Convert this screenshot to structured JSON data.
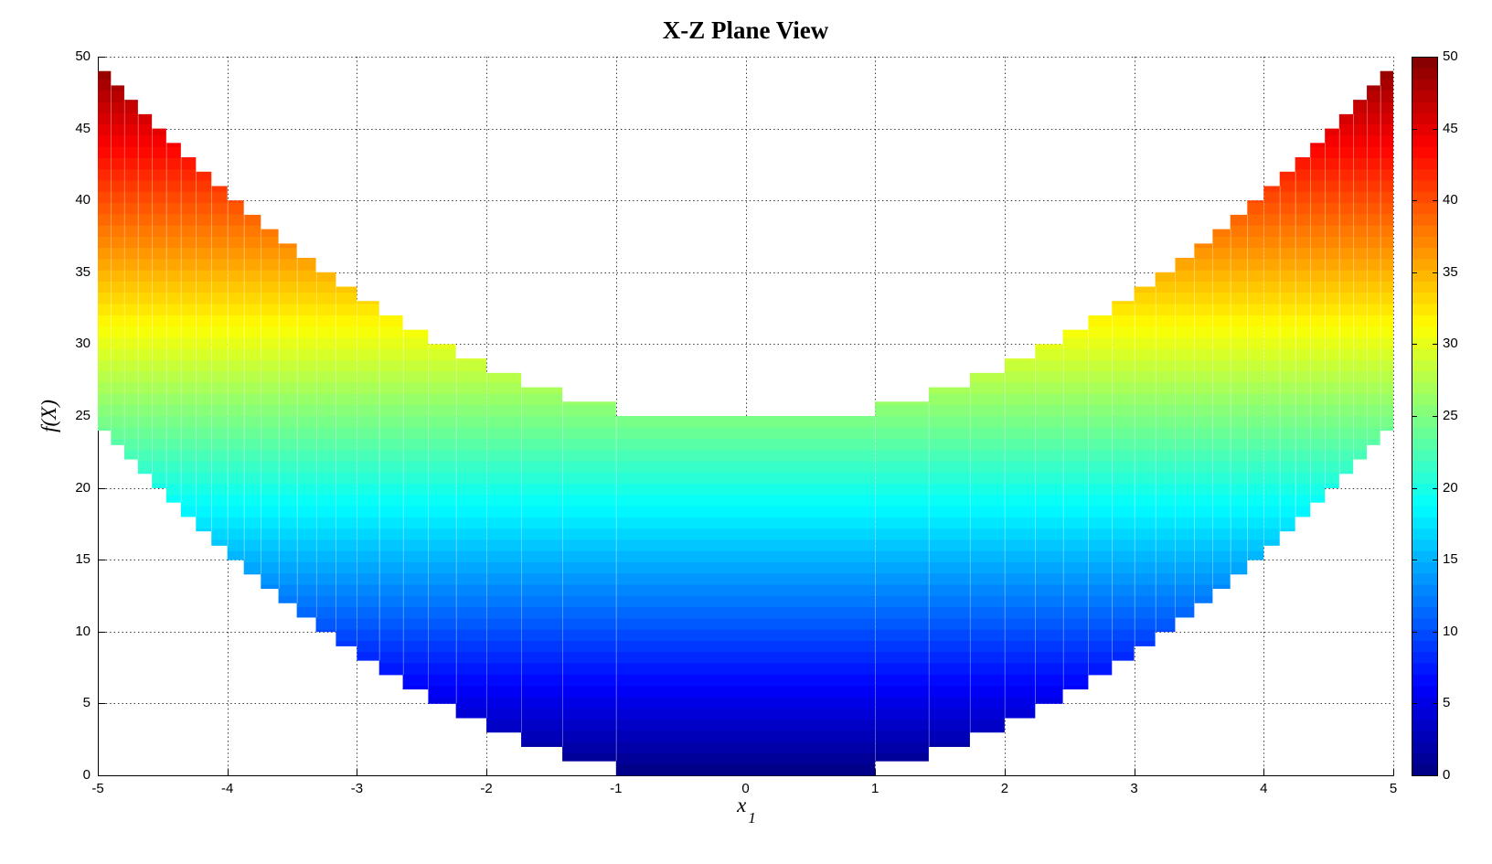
{
  "chart_data": {
    "type": "area",
    "title": "X-Z Plane View",
    "xlabel": "x",
    "xlabel_subscript": "1",
    "ylabel": "f(X)",
    "xlim": [
      -5,
      5
    ],
    "ylim": [
      0,
      50
    ],
    "xticks": [
      -5,
      -4,
      -3,
      -2,
      -1,
      0,
      1,
      2,
      3,
      4,
      5
    ],
    "xtick_labels": [
      "-5",
      "-4",
      "-3",
      "-2",
      "-1",
      "0",
      "1",
      "2",
      "3",
      "4",
      "5"
    ],
    "yticks": [
      0,
      5,
      10,
      15,
      20,
      25,
      30,
      35,
      40,
      45,
      50
    ],
    "ytick_labels": [
      "0",
      "5",
      "10",
      "15",
      "20",
      "25",
      "30",
      "35",
      "40",
      "45",
      "50"
    ],
    "grid": true,
    "grid_style": "dotted",
    "grid_color": "#333333",
    "axis_color": "#000000",
    "background": "#FFFFFF",
    "colormap": "jet",
    "color_levels": 64,
    "colormap_stops": [
      {
        "v": 0.0,
        "color": "#000080"
      },
      {
        "v": 0.125,
        "color": "#0000FF"
      },
      {
        "v": 0.375,
        "color": "#00FFFF"
      },
      {
        "v": 0.625,
        "color": "#FFFF00"
      },
      {
        "v": 0.875,
        "color": "#FF0000"
      },
      {
        "v": 1.0,
        "color": "#800000"
      }
    ],
    "colorbar": {
      "range": [
        0,
        50
      ],
      "ticks": [
        0,
        5,
        10,
        15,
        20,
        25,
        30,
        35,
        40,
        45,
        50
      ],
      "tick_labels": [
        "0",
        "5",
        "10",
        "15",
        "20",
        "25",
        "30",
        "35",
        "40",
        "45",
        "50"
      ]
    },
    "surface": {
      "function": "f(X) = x1^2 + x2^2",
      "x1_range": [
        -5,
        5
      ],
      "x2_range": [
        -5,
        5
      ],
      "view": "X-Z plane projection (view along x2)",
      "lower_envelope": "z = floor(x1^2)",
      "upper_envelope": "z = floor(x1^2) + 25",
      "band_thickness": 25,
      "z_step": 1,
      "symmetric_about_x0": true,
      "mesh_edge_color": "rgba(255,255,255,0.28)",
      "columns": [
        {
          "x_inner": 0.0,
          "x_outer": 1.0,
          "z_bottom": 0,
          "z_top": 25
        },
        {
          "x_inner": 1.0,
          "x_outer": 1.4142,
          "z_bottom": 1,
          "z_top": 26
        },
        {
          "x_inner": 1.4142,
          "x_outer": 1.7321,
          "z_bottom": 2,
          "z_top": 27
        },
        {
          "x_inner": 1.7321,
          "x_outer": 2.0,
          "z_bottom": 3,
          "z_top": 28
        },
        {
          "x_inner": 2.0,
          "x_outer": 2.2361,
          "z_bottom": 4,
          "z_top": 29
        },
        {
          "x_inner": 2.2361,
          "x_outer": 2.4495,
          "z_bottom": 5,
          "z_top": 30
        },
        {
          "x_inner": 2.4495,
          "x_outer": 2.6458,
          "z_bottom": 6,
          "z_top": 31
        },
        {
          "x_inner": 2.6458,
          "x_outer": 2.8284,
          "z_bottom": 7,
          "z_top": 32
        },
        {
          "x_inner": 2.8284,
          "x_outer": 3.0,
          "z_bottom": 8,
          "z_top": 33
        },
        {
          "x_inner": 3.0,
          "x_outer": 3.1623,
          "z_bottom": 9,
          "z_top": 34
        },
        {
          "x_inner": 3.1623,
          "x_outer": 3.3166,
          "z_bottom": 10,
          "z_top": 35
        },
        {
          "x_inner": 3.3166,
          "x_outer": 3.4641,
          "z_bottom": 11,
          "z_top": 36
        },
        {
          "x_inner": 3.4641,
          "x_outer": 3.6056,
          "z_bottom": 12,
          "z_top": 37
        },
        {
          "x_inner": 3.6056,
          "x_outer": 3.7417,
          "z_bottom": 13,
          "z_top": 38
        },
        {
          "x_inner": 3.7417,
          "x_outer": 3.873,
          "z_bottom": 14,
          "z_top": 39
        },
        {
          "x_inner": 3.873,
          "x_outer": 4.0,
          "z_bottom": 15,
          "z_top": 40
        },
        {
          "x_inner": 4.0,
          "x_outer": 4.1231,
          "z_bottom": 16,
          "z_top": 41
        },
        {
          "x_inner": 4.1231,
          "x_outer": 4.2426,
          "z_bottom": 17,
          "z_top": 42
        },
        {
          "x_inner": 4.2426,
          "x_outer": 4.3589,
          "z_bottom": 18,
          "z_top": 43
        },
        {
          "x_inner": 4.3589,
          "x_outer": 4.4721,
          "z_bottom": 19,
          "z_top": 44
        },
        {
          "x_inner": 4.4721,
          "x_outer": 4.5826,
          "z_bottom": 20,
          "z_top": 45
        },
        {
          "x_inner": 4.5826,
          "x_outer": 4.6904,
          "z_bottom": 21,
          "z_top": 46
        },
        {
          "x_inner": 4.6904,
          "x_outer": 4.7958,
          "z_bottom": 22,
          "z_top": 47
        },
        {
          "x_inner": 4.7958,
          "x_outer": 4.899,
          "z_bottom": 23,
          "z_top": 48
        },
        {
          "x_inner": 4.899,
          "x_outer": 5.0,
          "z_bottom": 24,
          "z_top": 49
        }
      ]
    }
  }
}
